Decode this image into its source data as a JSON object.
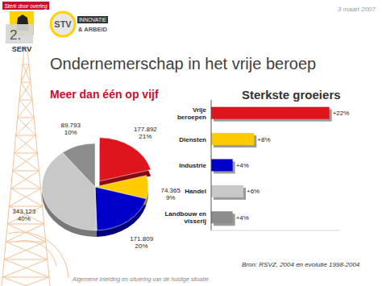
{
  "header": {
    "tagline": "Sterk door overleg",
    "logo_serv": "SERV",
    "logo_stv": "STV",
    "logo_stv_top": "INNOVATIE",
    "logo_stv_bottom": "& ARBEID",
    "date": "3 maart 2007",
    "slide_number": "2.",
    "title": "Ondernemerschap in het vrije beroep"
  },
  "footer": {
    "note": "Algemene inleiding en situering van de huidige situatie",
    "source": "Bron: RSVZ, 2004 en evolutie 1998-2004"
  },
  "chart_data": [
    {
      "type": "pie",
      "title": "Meer dan één op vijf",
      "values": [
        177892,
        74365,
        171809,
        343123,
        89793
      ],
      "value_labels": [
        "177.892",
        "74.365",
        "171.809",
        "343.123",
        "89.793"
      ],
      "share_labels": [
        "21%",
        "9%",
        "20%",
        "40%",
        "10%"
      ],
      "colors": [
        "#e0141c",
        "#ffcc00",
        "#0000c8",
        "#c8c8c8",
        "#8c8c8c"
      ],
      "data_labels": true
    },
    {
      "type": "bar",
      "orientation": "horizontal",
      "title": "Sterkste groeiers",
      "categories": [
        "Vrije beroepen",
        "Diensten",
        "Industrie",
        "Handel",
        "Landbouw en visserij"
      ],
      "values": [
        22,
        8,
        4,
        6,
        4
      ],
      "value_labels": [
        "+22%",
        "+8%",
        "+4%",
        "+6%",
        "+4%"
      ],
      "colors": [
        "#e0141c",
        "#ffcc00",
        "#0000c8",
        "#c8c8c8",
        "#8c8c8c"
      ],
      "xlim": [
        0,
        24
      ],
      "tick_labels": "y",
      "data_labels": true,
      "grid": false
    }
  ]
}
